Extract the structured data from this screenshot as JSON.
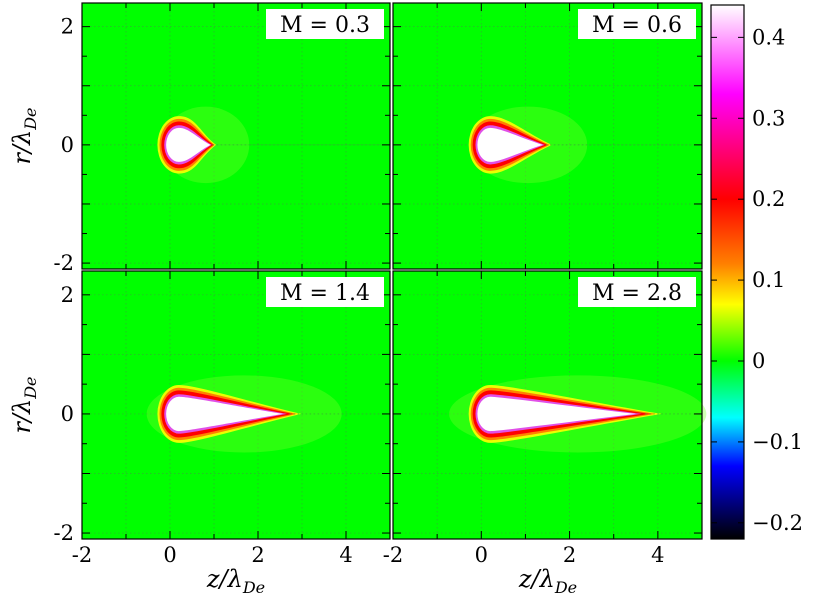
{
  "chart_data": {
    "type": "heatmap",
    "panels": [
      {
        "label": "M = 0.3",
        "mach": 0.3,
        "tail_length": 0.55
      },
      {
        "label": "M = 0.6",
        "mach": 0.6,
        "tail_length": 1.05
      },
      {
        "label": "M = 1.4",
        "mach": 1.4,
        "tail_length": 2.3
      },
      {
        "label": "M = 2.8",
        "mach": 2.8,
        "tail_length": 3.3
      }
    ],
    "x_axis": {
      "label": "z/λDe",
      "range": [
        -2,
        5
      ],
      "ticks": [
        -2,
        0,
        2,
        4
      ],
      "tick_labels": [
        "-2",
        "0",
        "2",
        "4"
      ]
    },
    "y_axis": {
      "label": "r/λDe",
      "range": [
        -2.1,
        2.4
      ],
      "ticks": [
        -2,
        0,
        2
      ],
      "tick_labels": [
        "-2",
        "0",
        "2"
      ]
    },
    "colorbar": {
      "range": [
        -0.22,
        0.44
      ],
      "ticks": [
        -0.2,
        -0.1,
        0,
        0.1,
        0.2,
        0.3,
        0.4
      ],
      "tick_labels": [
        "−0.2",
        "−0.1",
        "0",
        "0.1",
        "0.2",
        "0.3",
        "0.4"
      ],
      "colors": [
        "#000000",
        "#0000ff",
        "#00ffff",
        "#00ff00",
        "#ffff00",
        "#ff8000",
        "#ff0000",
        "#ff00ff",
        "#ffffff"
      ]
    },
    "grid": true,
    "background_value": 0
  }
}
